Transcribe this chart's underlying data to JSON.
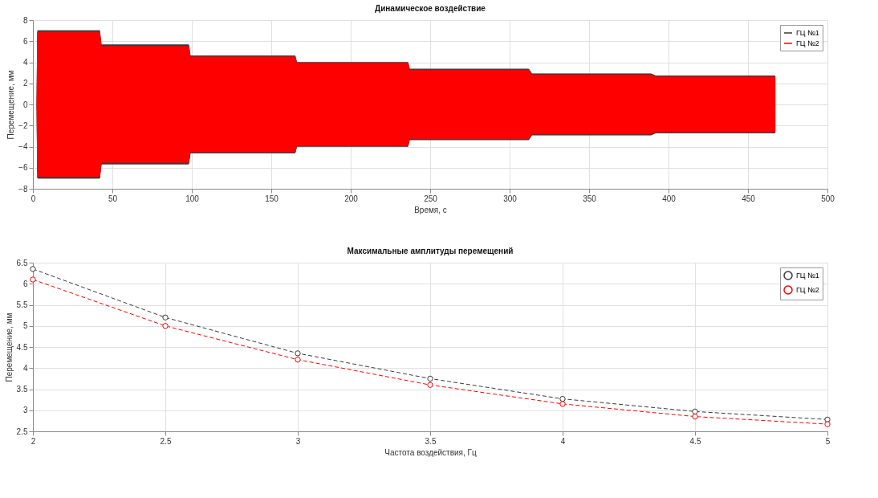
{
  "chart_data": [
    {
      "type": "line",
      "title": "Динамическое воздействие",
      "xlabel": "Время, с",
      "ylabel": "Перемещение, мм",
      "xlim": [
        0,
        500
      ],
      "xticks": [
        0,
        50,
        100,
        150,
        200,
        250,
        300,
        350,
        400,
        450,
        500
      ],
      "ylim": [
        -8,
        8
      ],
      "yticks": [
        -8,
        -6,
        -4,
        -2,
        0,
        2,
        4,
        6,
        8
      ],
      "grid": true,
      "legend": "top right",
      "series": [
        {
          "name": "ГЦ №1",
          "color": "#3a3a3a",
          "x": [
            2.5,
            3,
            42,
            43,
            98,
            99,
            165,
            166,
            236,
            237,
            312,
            314,
            389,
            392,
            467
          ],
          "values": [
            null,
            null,
            null,
            null,
            null,
            null,
            null,
            null,
            null,
            null,
            null,
            null,
            null,
            null,
            null
          ],
          "upper": [
            0,
            7.0,
            7.0,
            5.65,
            5.65,
            4.6,
            4.6,
            3.98,
            3.98,
            3.35,
            3.35,
            2.9,
            2.9,
            2.7,
            2.7
          ],
          "lower": [
            0,
            -7.0,
            -7.0,
            -5.65,
            -5.65,
            -4.6,
            -4.6,
            -3.98,
            -3.98,
            -3.35,
            -3.35,
            -2.9,
            -2.9,
            -2.7,
            -2.7
          ]
        },
        {
          "name": "ГЦ №2",
          "color": "#ff0000",
          "x": [
            2.5,
            3,
            42,
            43,
            98,
            99,
            165,
            166,
            236,
            237,
            312,
            314,
            389,
            392,
            467
          ],
          "values": [
            null,
            null,
            null,
            null,
            null,
            null,
            null,
            null,
            null,
            null,
            null,
            null,
            null,
            null,
            null
          ],
          "upper": [
            0,
            6.85,
            6.85,
            5.5,
            5.5,
            4.5,
            4.5,
            3.9,
            3.9,
            3.25,
            3.25,
            2.8,
            2.8,
            2.6,
            2.6
          ],
          "lower": [
            0,
            -6.85,
            -6.85,
            -5.5,
            -5.5,
            -4.5,
            -4.5,
            -3.9,
            -3.9,
            -3.25,
            -3.25,
            -2.8,
            -2.8,
            -2.6,
            -2.6
          ]
        }
      ]
    },
    {
      "type": "line",
      "title": "Максимальные амплитуды перемещений",
      "xlabel": "Частота воздействия, Гц",
      "ylabel": "Перемещение, мм",
      "x": [
        2,
        2.5,
        3,
        3.5,
        4,
        4.5,
        5
      ],
      "xlim": [
        2,
        5
      ],
      "xticks": [
        2,
        2.5,
        3,
        3.5,
        4,
        4.5,
        5
      ],
      "ylim": [
        2.5,
        6.5
      ],
      "yticks": [
        2.5,
        3,
        3.5,
        4,
        4.5,
        5,
        5.5,
        6,
        6.5
      ],
      "grid": true,
      "legend": "top right",
      "marker": "circle",
      "line_style": "dashed",
      "series": [
        {
          "name": "ГЦ №1",
          "color": "#3a3a3a",
          "values": [
            6.35,
            5.2,
            4.35,
            3.75,
            3.27,
            2.97,
            2.78
          ]
        },
        {
          "name": "ГЦ №2",
          "color": "#ff0000",
          "values": [
            6.1,
            5.0,
            4.2,
            3.6,
            3.15,
            2.85,
            2.67
          ]
        }
      ]
    }
  ]
}
